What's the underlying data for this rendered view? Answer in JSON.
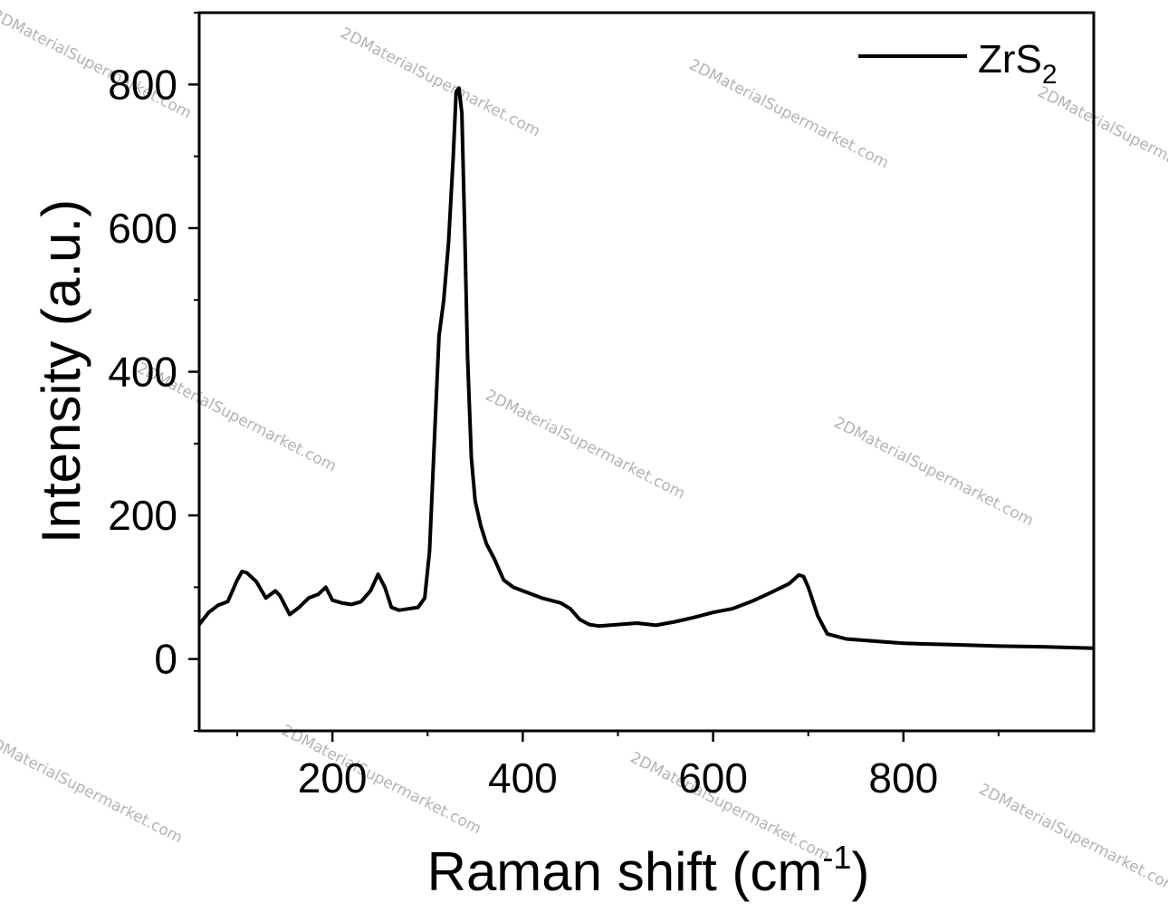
{
  "chart_data": {
    "type": "line",
    "xlabel": "Raman shift (cm-1)",
    "ylabel": "Intensity (a.u.)",
    "xlim": [
      60,
      1000
    ],
    "ylim": [
      -100,
      900
    ],
    "x_ticks": [
      200,
      400,
      600,
      800
    ],
    "y_ticks": [
      0,
      200,
      400,
      600,
      800
    ],
    "grid": false,
    "legend_position": "top-right",
    "line_color": "#000000",
    "series": [
      {
        "name": "ZrS2",
        "x": [
          60,
          70,
          80,
          90,
          100,
          105,
          110,
          120,
          130,
          140,
          145,
          155,
          165,
          175,
          185,
          193,
          200,
          210,
          220,
          230,
          240,
          248,
          255,
          262,
          270,
          280,
          290,
          297,
          302,
          307,
          312,
          317,
          322,
          327,
          330,
          333,
          336,
          339,
          342,
          346,
          350,
          356,
          362,
          370,
          380,
          390,
          400,
          420,
          440,
          450,
          460,
          470,
          480,
          500,
          520,
          540,
          560,
          580,
          600,
          620,
          640,
          660,
          680,
          690,
          695,
          700,
          710,
          720,
          740,
          760,
          780,
          800,
          850,
          900,
          950,
          1000
        ],
        "y": [
          48,
          65,
          75,
          80,
          110,
          122,
          120,
          108,
          85,
          95,
          88,
          62,
          72,
          85,
          90,
          100,
          82,
          78,
          76,
          80,
          95,
          118,
          100,
          72,
          68,
          70,
          72,
          85,
          150,
          300,
          450,
          500,
          580,
          700,
          790,
          795,
          760,
          600,
          420,
          280,
          220,
          185,
          160,
          140,
          110,
          100,
          95,
          85,
          78,
          70,
          55,
          48,
          46,
          48,
          50,
          47,
          52,
          58,
          65,
          70,
          80,
          92,
          105,
          117,
          115,
          100,
          60,
          35,
          28,
          26,
          24,
          22,
          20,
          18,
          17,
          15
        ]
      }
    ],
    "legend": [
      {
        "label": "ZrS",
        "subscript": "2"
      }
    ],
    "watermark_text": "2DMaterialSupermarket.com"
  }
}
